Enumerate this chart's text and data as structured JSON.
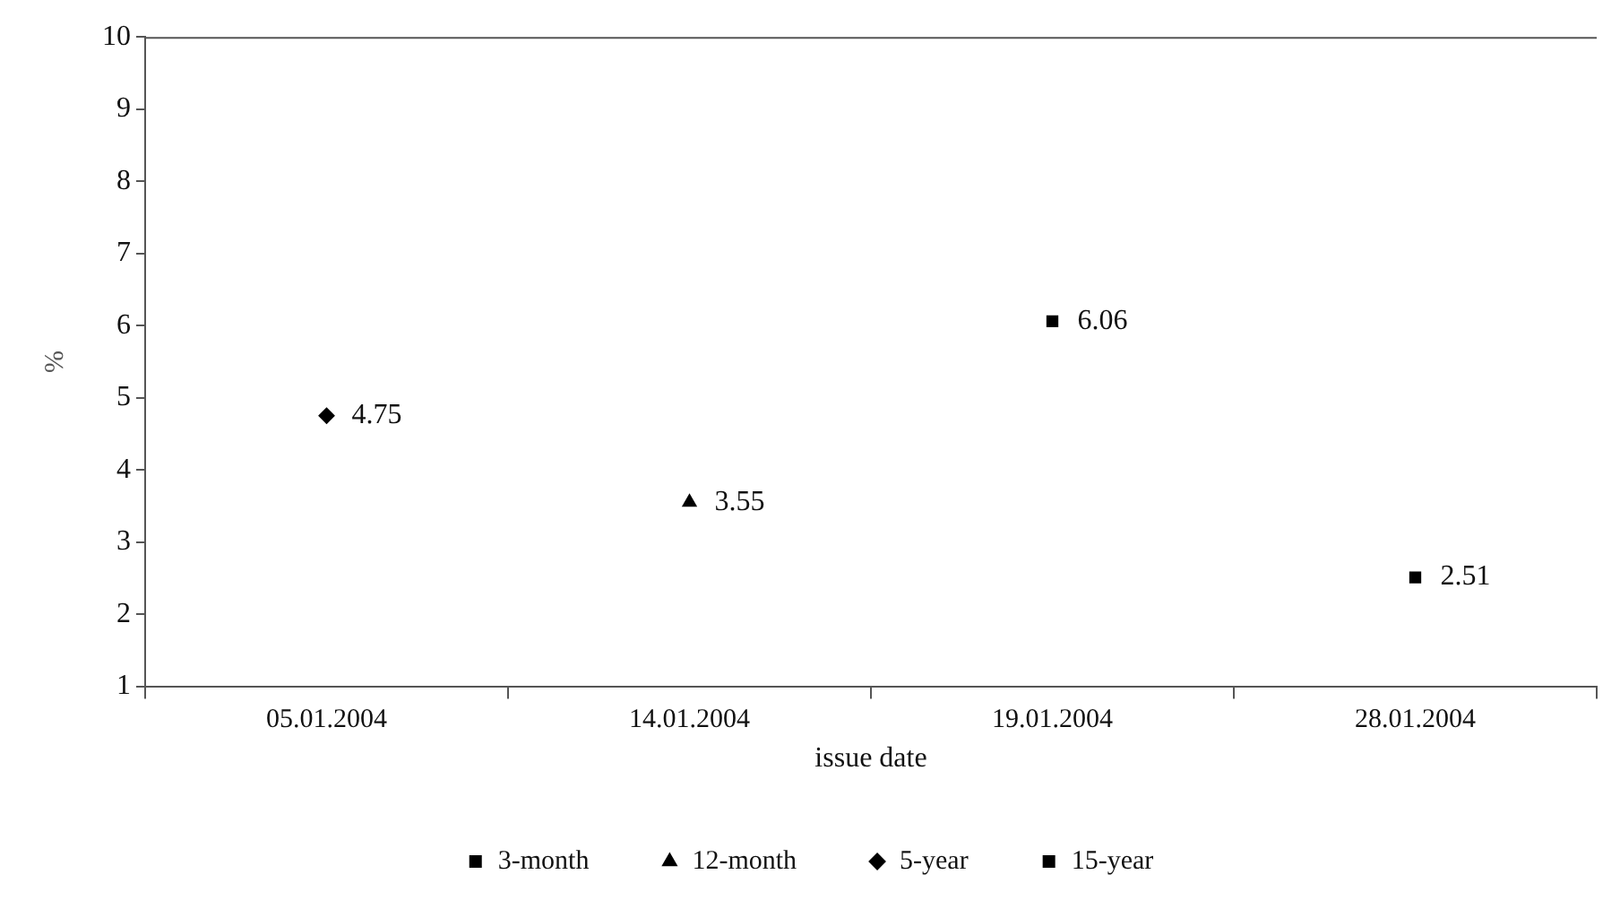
{
  "chart_data": {
    "type": "line",
    "xlabel": "issue date",
    "ylabel": "%",
    "categories": [
      "05.01.2004",
      "14.01.2004",
      "19.01.2004",
      "28.01.2004"
    ],
    "series": [
      {
        "name": "3-month",
        "color": "#000000",
        "marker": "square",
        "values": [
          null,
          null,
          null,
          2.51
        ]
      },
      {
        "name": "12-month",
        "color": "#000000",
        "marker": "triangle",
        "values": [
          null,
          3.55,
          null,
          null
        ]
      },
      {
        "name": "5-year",
        "color": "#000000",
        "marker": "diamond",
        "values": [
          4.75,
          null,
          null,
          null
        ]
      },
      {
        "name": "15-year",
        "color": "#000000",
        "marker": "square",
        "values": [
          null,
          null,
          6.06,
          null
        ]
      }
    ],
    "ylim": [
      1,
      10
    ],
    "yticks": [
      1,
      2,
      3,
      4,
      5,
      6,
      7,
      8,
      9,
      10
    ],
    "grid": false,
    "legend": "bottom",
    "data_labels": true
  }
}
